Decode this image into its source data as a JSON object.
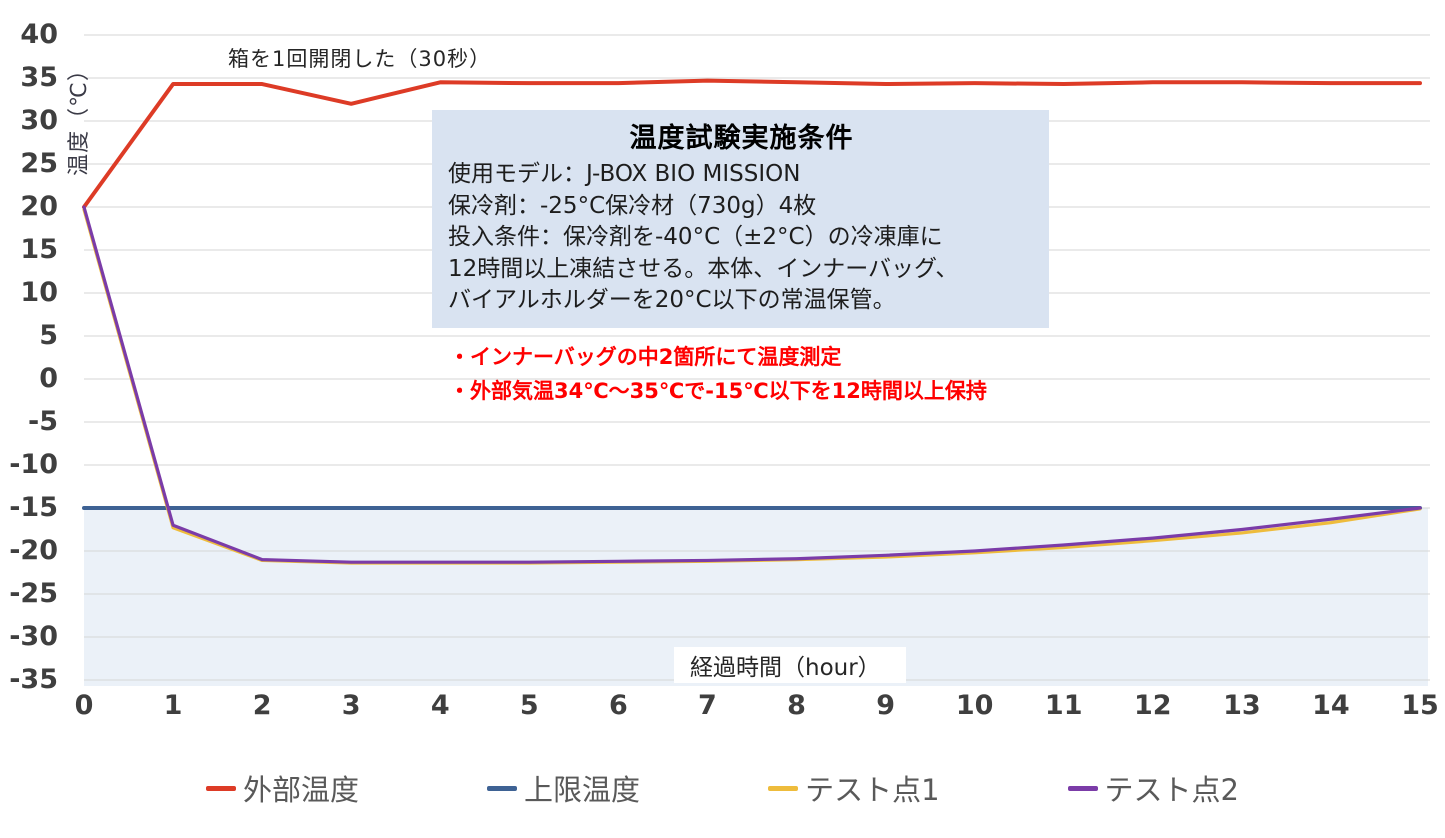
{
  "annotation": {
    "text": "箱を1回開閉した（30秒）"
  },
  "condition_box": {
    "title": "温度試験実施条件",
    "lines": [
      "使用モデル：J-BOX BIO MISSION",
      "保冷剤：-25°C保冷材（730g）4枚",
      "投入条件：保冷剤を-40°C（±2°C）の冷凍庫に",
      "12時間以上凍結させる。本体、インナーバッグ、",
      "バイアルホルダーを20°C以下の常温保管。"
    ],
    "background": "#d9e3f1"
  },
  "notes": {
    "color": "#ff0000",
    "lines": [
      "・インナーバッグの中2箇所にて温度測定",
      "・外部気温34℃～35℃で-15℃以下を12時間以上保持"
    ]
  },
  "chart_data": {
    "type": "line",
    "title": "",
    "xlabel": "経過時間（hour）",
    "ylabel": "温度（℃）",
    "x": [
      0,
      1,
      2,
      3,
      4,
      5,
      6,
      7,
      8,
      9,
      10,
      11,
      12,
      13,
      14,
      15
    ],
    "xlim": [
      0,
      15
    ],
    "ylim": [
      -35,
      40
    ],
    "xticks": [
      0,
      1,
      2,
      3,
      4,
      5,
      6,
      7,
      8,
      9,
      10,
      11,
      12,
      13,
      14,
      15
    ],
    "yticks": [
      40,
      35,
      30,
      25,
      20,
      15,
      10,
      5,
      0,
      -5,
      -10,
      -15,
      -20,
      -25,
      -30,
      -35
    ],
    "grid": "horizontal",
    "grid_color": "#d6d6d6",
    "legend_position": "bottom",
    "annotation": "箱を1回開閉した（30秒）",
    "series": [
      {
        "name": "外部温度",
        "color": "#dd3b26",
        "width": 4,
        "values": [
          20,
          34.3,
          34.3,
          32,
          34.5,
          34.4,
          34.4,
          34.7,
          34.5,
          34.3,
          34.4,
          34.3,
          34.5,
          34.5,
          34.4,
          34.4
        ]
      },
      {
        "name": "上限温度",
        "color": "#3e6294",
        "width": 4,
        "fill_below": true,
        "fill_color": "#ebf1f8",
        "values": [
          -15,
          -15,
          -15,
          -15,
          -15,
          -15,
          -15,
          -15,
          -15,
          -15,
          -15,
          -15,
          -15,
          -15,
          -15,
          -15
        ]
      },
      {
        "name": "テスト点1",
        "color": "#eebc3c",
        "width": 3.2,
        "values": [
          19.7,
          -17.3,
          -21.1,
          -21.4,
          -21.4,
          -21.4,
          -21.3,
          -21.2,
          -21.0,
          -20.7,
          -20.2,
          -19.6,
          -18.8,
          -17.9,
          -16.7,
          -15.1
        ]
      },
      {
        "name": "テスト点2",
        "color": "#7b3ca8",
        "width": 3.2,
        "values": [
          20,
          -17,
          -21,
          -21.3,
          -21.3,
          -21.3,
          -21.2,
          -21.1,
          -20.9,
          -20.5,
          -20.0,
          -19.3,
          -18.5,
          -17.5,
          -16.3,
          -15.0
        ]
      }
    ]
  }
}
